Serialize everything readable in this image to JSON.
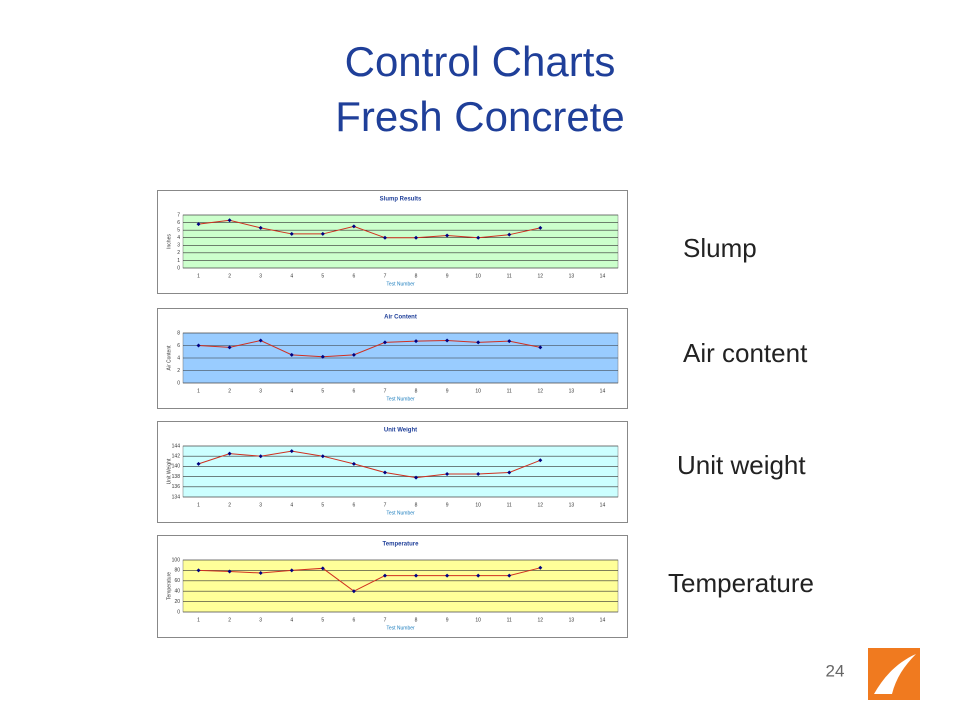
{
  "slide": {
    "title": [
      "Control Charts",
      "Fresh Concrete"
    ],
    "labels": [
      "Slump",
      "Air content",
      "Unit weight",
      "Temperature"
    ],
    "page_number": "24"
  },
  "chart_data": [
    {
      "type": "line",
      "title": "Slump Results",
      "x_label": "Test Number",
      "y_label": "Inches",
      "categories": [
        1,
        2,
        3,
        4,
        5,
        6,
        7,
        8,
        9,
        10,
        11,
        12,
        13,
        14
      ],
      "values": [
        5.8,
        6.3,
        5.3,
        4.5,
        4.5,
        5.5,
        4.0,
        4.0,
        4.3,
        4.0,
        4.4,
        5.3,
        null,
        null
      ],
      "color": "#d03020",
      "marker_color": "#000080",
      "plot_color": "#ccffcc",
      "ylim": [
        0,
        7
      ],
      "yticks": [
        0,
        1,
        2,
        3,
        4,
        5,
        6,
        7
      ],
      "grid": true
    },
    {
      "type": "line",
      "title": "Air Content",
      "x_label": "Test Number",
      "y_label": "Air Content",
      "categories": [
        1,
        2,
        3,
        4,
        5,
        6,
        7,
        8,
        9,
        10,
        11,
        12,
        13,
        14
      ],
      "values": [
        6.0,
        5.7,
        6.8,
        4.5,
        4.2,
        4.5,
        6.5,
        6.7,
        6.8,
        6.5,
        6.7,
        5.7,
        null,
        null
      ],
      "color": "#d03020",
      "marker_color": "#000080",
      "plot_color": "#99ccff",
      "ylim": [
        0,
        8
      ],
      "yticks": [
        0,
        2,
        4,
        6,
        8
      ],
      "grid": true
    },
    {
      "type": "line",
      "title": "Unit Weight",
      "x_label": "Test Number",
      "y_label": "Unit Weight",
      "categories": [
        1,
        2,
        3,
        4,
        5,
        6,
        7,
        8,
        9,
        10,
        11,
        12,
        13,
        14
      ],
      "values": [
        140.5,
        142.5,
        142,
        143,
        142,
        140.5,
        138.8,
        137.8,
        138.5,
        138.5,
        138.8,
        141.2,
        null,
        null
      ],
      "color": "#d03020",
      "marker_color": "#000080",
      "plot_color": "#ccffff",
      "ylim": [
        134,
        144
      ],
      "yticks": [
        134,
        136,
        138,
        140,
        142,
        144
      ],
      "grid": true
    },
    {
      "type": "line",
      "title": "Temperature",
      "x_label": "Test Number",
      "y_label": "Temperature",
      "categories": [
        1,
        2,
        3,
        4,
        5,
        6,
        7,
        8,
        9,
        10,
        11,
        12,
        13,
        14
      ],
      "values": [
        80,
        78,
        75,
        80,
        84,
        40,
        70,
        70,
        70,
        70,
        70,
        85,
        null,
        null
      ],
      "color": "#d03020",
      "marker_color": "#000080",
      "plot_color": "#ffff99",
      "ylim": [
        0,
        100
      ],
      "yticks": [
        0,
        20,
        40,
        60,
        80,
        100
      ],
      "grid": true
    }
  ]
}
